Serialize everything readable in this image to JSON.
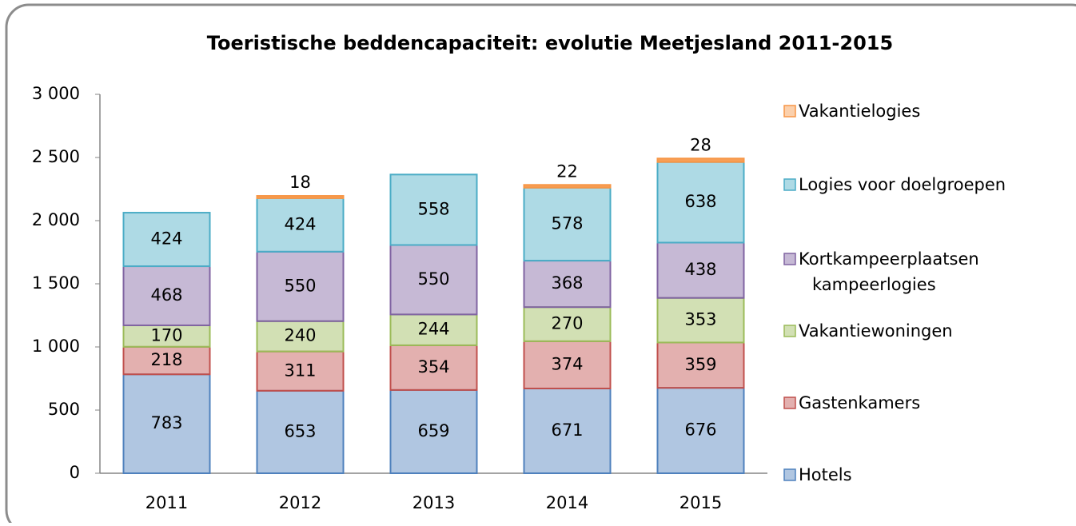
{
  "chart_data": {
    "type": "stacked_bar",
    "title": "Toeristische beddencapaciteit: evolutie Meetjesland  2011-2015",
    "categories": [
      "2011",
      "2012",
      "2013",
      "2014",
      "2015"
    ],
    "series": [
      {
        "name": "Hotels",
        "color": "#4f81bd",
        "values": [
          783,
          653,
          659,
          671,
          676
        ]
      },
      {
        "name": "Gastenkamers",
        "color": "#c0504d",
        "values": [
          218,
          311,
          354,
          374,
          359
        ]
      },
      {
        "name": "Vakantiewoningen",
        "color": "#9bbb59",
        "values": [
          170,
          240,
          244,
          270,
          353
        ]
      },
      {
        "name": "Kortkampeerplaatsen kampeerlogies",
        "color": "#8064a2",
        "values": [
          468,
          550,
          550,
          368,
          438
        ]
      },
      {
        "name": "Logies voor doelgroepen",
        "color": "#4bacc6",
        "values": [
          424,
          424,
          558,
          578,
          638
        ]
      },
      {
        "name": "Vakantielogies",
        "color": "#f79646",
        "values": [
          null,
          18,
          null,
          22,
          28
        ]
      }
    ],
    "ylim": [
      0,
      3000
    ],
    "yticks": [
      0,
      500,
      {
        "value": 1000,
        "label": "1 000"
      },
      {
        "value": 1500,
        "label": "1 500"
      },
      {
        "value": 2000,
        "label": "2 000"
      },
      {
        "value": 2500,
        "label": "2 500"
      },
      {
        "value": 3000,
        "label": "3 000"
      }
    ],
    "legend": "right"
  }
}
